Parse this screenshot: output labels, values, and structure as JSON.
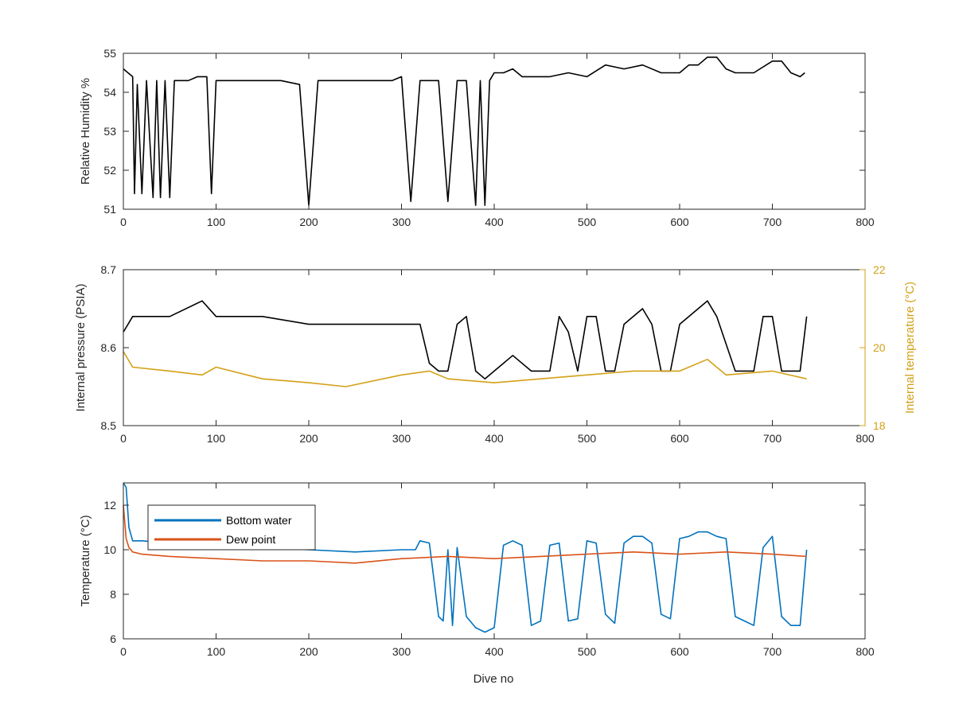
{
  "chart_data": [
    {
      "type": "line",
      "ylabel": "Relative Humidity %",
      "xlim": [
        0,
        800
      ],
      "ylim": [
        51,
        55
      ],
      "xticks": [
        "0",
        "100",
        "200",
        "300",
        "400",
        "500",
        "600",
        "700",
        "800"
      ],
      "yticks": [
        "51",
        "52",
        "53",
        "54",
        "55"
      ],
      "series": [
        {
          "color": "#000000",
          "x": [
            0,
            10,
            12,
            15,
            20,
            25,
            28,
            32,
            36,
            40,
            45,
            50,
            55,
            60,
            70,
            80,
            90,
            95,
            100,
            110,
            130,
            150,
            170,
            190,
            200,
            210,
            230,
            250,
            270,
            290,
            300,
            310,
            320,
            330,
            340,
            350,
            360,
            370,
            380,
            385,
            390,
            395,
            400,
            410,
            420,
            430,
            440,
            460,
            480,
            500,
            520,
            540,
            560,
            580,
            600,
            610,
            620,
            630,
            640,
            650,
            660,
            680,
            700,
            710,
            720,
            730,
            735
          ],
          "y": [
            54.6,
            54.4,
            51.4,
            54.2,
            51.4,
            54.3,
            53.0,
            51.3,
            54.3,
            51.3,
            54.3,
            51.3,
            54.3,
            54.3,
            54.3,
            54.4,
            54.4,
            51.4,
            54.3,
            54.3,
            54.3,
            54.3,
            54.3,
            54.2,
            51.1,
            54.3,
            54.3,
            54.3,
            54.3,
            54.3,
            54.4,
            51.2,
            54.3,
            54.3,
            54.3,
            51.2,
            54.3,
            54.3,
            51.1,
            54.3,
            51.1,
            54.3,
            54.5,
            54.5,
            54.6,
            54.4,
            54.4,
            54.4,
            54.5,
            54.4,
            54.7,
            54.6,
            54.7,
            54.5,
            54.5,
            54.7,
            54.7,
            54.9,
            54.9,
            54.6,
            54.5,
            54.5,
            54.8,
            54.8,
            54.5,
            54.4,
            54.5
          ]
        }
      ]
    },
    {
      "type": "line",
      "ylabel": "Internal pressure (PSIA)",
      "y2label": "Internal temperature (°C)",
      "xlim": [
        0,
        800
      ],
      "ylim": [
        8.5,
        8.7
      ],
      "y2lim": [
        18,
        22
      ],
      "xticks": [
        "0",
        "100",
        "200",
        "300",
        "400",
        "500",
        "600",
        "700",
        "800"
      ],
      "yticks": [
        "8.5",
        "8.6",
        "8.7"
      ],
      "y2ticks": [
        "18",
        "20",
        "22"
      ],
      "series": [
        {
          "color": "#000000",
          "axis": "left",
          "x": [
            0,
            10,
            50,
            85,
            100,
            150,
            200,
            250,
            300,
            320,
            330,
            340,
            350,
            360,
            370,
            380,
            390,
            400,
            420,
            440,
            460,
            470,
            480,
            490,
            500,
            510,
            520,
            530,
            540,
            550,
            560,
            570,
            580,
            590,
            600,
            620,
            630,
            640,
            660,
            680,
            690,
            700,
            710,
            720,
            730,
            737
          ],
          "y": [
            8.62,
            8.64,
            8.64,
            8.66,
            8.64,
            8.64,
            8.63,
            8.63,
            8.63,
            8.63,
            8.58,
            8.57,
            8.57,
            8.63,
            8.64,
            8.57,
            8.56,
            8.57,
            8.59,
            8.57,
            8.57,
            8.64,
            8.62,
            8.57,
            8.64,
            8.64,
            8.57,
            8.57,
            8.63,
            8.64,
            8.65,
            8.63,
            8.57,
            8.57,
            8.63,
            8.65,
            8.66,
            8.64,
            8.57,
            8.57,
            8.64,
            8.64,
            8.57,
            8.57,
            8.57,
            8.64
          ]
        },
        {
          "color": "#D4A017",
          "axis": "right",
          "x": [
            0,
            10,
            50,
            85,
            100,
            150,
            200,
            240,
            300,
            330,
            350,
            400,
            450,
            500,
            550,
            600,
            630,
            650,
            700,
            737
          ],
          "y": [
            19.9,
            19.5,
            19.4,
            19.3,
            19.5,
            19.2,
            19.1,
            19.0,
            19.3,
            19.4,
            19.2,
            19.1,
            19.2,
            19.3,
            19.4,
            19.4,
            19.7,
            19.3,
            19.4,
            19.2
          ]
        }
      ]
    },
    {
      "type": "line",
      "xlabel": "Dive no",
      "ylabel": "Temperature (°C)",
      "xlim": [
        0,
        800
      ],
      "ylim": [
        6,
        13
      ],
      "xticks": [
        "0",
        "100",
        "200",
        "300",
        "400",
        "500",
        "600",
        "700",
        "800"
      ],
      "yticks": [
        "6",
        "8",
        "10",
        "12"
      ],
      "legend": "top-left",
      "series": [
        {
          "name": "Bottom water",
          "color": "#0072BD",
          "x": [
            0,
            3,
            6,
            10,
            20,
            50,
            100,
            150,
            200,
            250,
            300,
            315,
            320,
            330,
            340,
            345,
            350,
            355,
            360,
            370,
            380,
            390,
            400,
            410,
            420,
            430,
            440,
            450,
            460,
            470,
            480,
            490,
            500,
            510,
            520,
            530,
            540,
            550,
            560,
            570,
            580,
            590,
            600,
            610,
            620,
            630,
            640,
            650,
            660,
            670,
            680,
            690,
            700,
            710,
            720,
            730,
            737
          ],
          "y": [
            13.0,
            12.8,
            11.0,
            10.4,
            10.4,
            10.3,
            10.2,
            10.1,
            10.0,
            9.9,
            10.0,
            10.0,
            10.4,
            10.3,
            7.0,
            6.8,
            10.0,
            6.6,
            10.1,
            7.0,
            6.5,
            6.3,
            6.5,
            10.2,
            10.4,
            10.2,
            6.6,
            6.8,
            10.2,
            10.3,
            6.8,
            6.9,
            10.4,
            10.3,
            7.1,
            6.7,
            10.3,
            10.6,
            10.6,
            10.3,
            7.1,
            6.9,
            10.5,
            10.6,
            10.8,
            10.8,
            10.6,
            10.5,
            7.0,
            6.8,
            6.6,
            10.1,
            10.6,
            7.0,
            6.6,
            6.6,
            10.0
          ]
        },
        {
          "name": "Dew point",
          "color": "#D95319",
          "x": [
            0,
            3,
            6,
            10,
            20,
            50,
            100,
            150,
            200,
            250,
            300,
            350,
            400,
            450,
            500,
            550,
            600,
            650,
            700,
            737
          ],
          "y": [
            12.0,
            10.5,
            10.1,
            9.9,
            9.8,
            9.7,
            9.6,
            9.5,
            9.5,
            9.4,
            9.6,
            9.7,
            9.6,
            9.7,
            9.8,
            9.9,
            9.8,
            9.9,
            9.8,
            9.7
          ]
        }
      ]
    }
  ]
}
